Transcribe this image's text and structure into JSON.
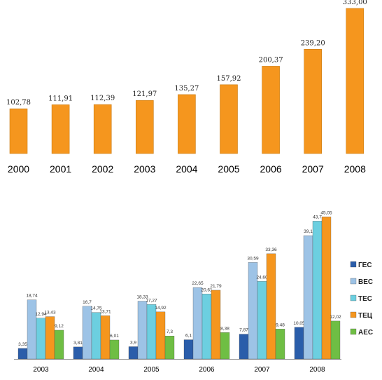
{
  "chart_data": [
    {
      "type": "bar",
      "categories": [
        "2000",
        "2001",
        "2002",
        "2003",
        "2004",
        "2005",
        "2006",
        "2007",
        "2008"
      ],
      "values": [
        102.78,
        111.91,
        112.39,
        121.97,
        135.27,
        157.92,
        200.37,
        239.2,
        333.0
      ],
      "value_labels": [
        "102,78",
        "111,91",
        "112,39",
        "121,97",
        "135,27",
        "157,92",
        "200,37",
        "239,20",
        "333,00"
      ],
      "ylim": [
        0,
        333
      ],
      "colors": {
        "bar": "#F5961E"
      }
    },
    {
      "type": "bar",
      "categories": [
        "2003",
        "2004",
        "2005",
        "2006",
        "2007",
        "2008"
      ],
      "series": [
        {
          "name": "ГЕС",
          "color": "#2A5DAA",
          "values": [
            3.35,
            3.81,
            3.9,
            6.1,
            7.87,
            10.05
          ],
          "labels": [
            "3,35",
            "3,81",
            "3,9",
            "6,1",
            "7,87",
            "10,05"
          ]
        },
        {
          "name": "ВЕС",
          "color": "#9DC3E6",
          "values": [
            18.74,
            16.7,
            18.33,
            22.65,
            30.59,
            39.1
          ],
          "labels": [
            "18,74",
            "16,7",
            "18,33",
            "22,65",
            "30,59",
            "39,1"
          ]
        },
        {
          "name": "ТЕС",
          "color": "#6CCFE0",
          "values": [
            12.94,
            14.75,
            17.27,
            20.61,
            24.6,
            43.7
          ],
          "labels": [
            "12,94",
            "14,75",
            "17,27",
            "20,61",
            "24,60",
            "43,7"
          ]
        },
        {
          "name": "ТЕЦ",
          "color": "#F5961E",
          "values": [
            13.43,
            13.71,
            14.92,
            21.79,
            33.36,
            45.05
          ],
          "labels": [
            "13,43",
            "13,71",
            "14,92",
            "21,79",
            "33,36",
            "45,05"
          ]
        },
        {
          "name": "АЕС",
          "color": "#6FBE44",
          "values": [
            9.12,
            6.01,
            7.3,
            8.38,
            9.48,
            12.02
          ],
          "labels": [
            "9,12",
            "6,01",
            "7,3",
            "8,38",
            "9,48",
            "12,02"
          ]
        }
      ],
      "ylim": [
        0,
        50
      ],
      "legend": "right"
    }
  ]
}
